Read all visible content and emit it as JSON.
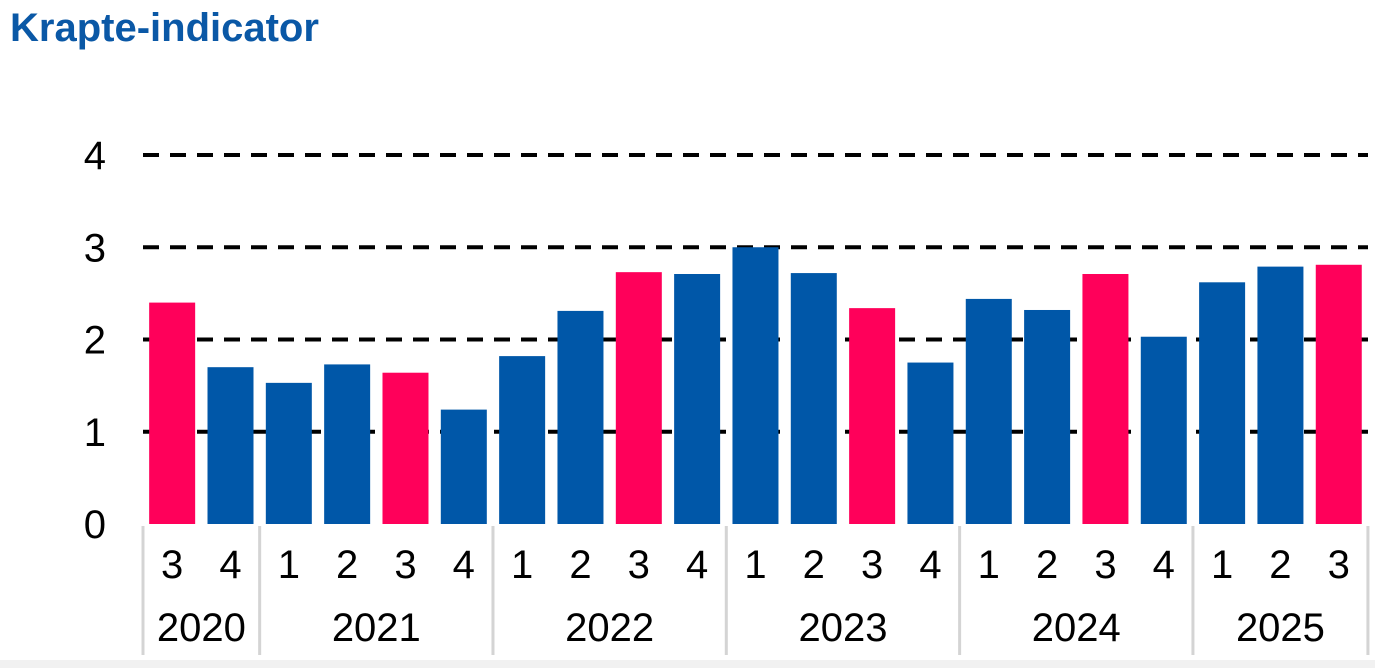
{
  "title": "Krapte-indicator",
  "colors": {
    "title": "#0a58a6",
    "bar_default": "#0057a8",
    "bar_highlight": "#ff005a",
    "gridline": "#000000",
    "axis_separator": "#d4d4d4",
    "text": "#000000"
  },
  "chart_data": {
    "type": "bar",
    "title": "Krapte-indicator",
    "xlabel": "",
    "ylabel": "",
    "ylim": [
      0,
      4
    ],
    "yticks": [
      "0",
      "1",
      "2",
      "3",
      "4"
    ],
    "grid": "dashed horizontal",
    "legend": "none",
    "categories": [
      "3",
      "4",
      "1",
      "2",
      "3",
      "4",
      "1",
      "2",
      "3",
      "4",
      "1",
      "2",
      "3",
      "4",
      "1",
      "2",
      "3",
      "4",
      "1",
      "2",
      "3"
    ],
    "values": [
      2.4,
      1.7,
      1.53,
      1.73,
      1.64,
      1.24,
      1.82,
      2.31,
      2.73,
      2.71,
      3.0,
      2.72,
      2.34,
      1.75,
      2.44,
      2.32,
      2.71,
      2.03,
      2.62,
      2.79,
      2.81
    ],
    "highlighted": [
      true,
      false,
      false,
      false,
      true,
      false,
      false,
      false,
      true,
      false,
      false,
      false,
      true,
      false,
      false,
      false,
      true,
      false,
      false,
      false,
      true
    ],
    "year_groups": [
      {
        "label": "2020",
        "count": 2
      },
      {
        "label": "2021",
        "count": 4
      },
      {
        "label": "2022",
        "count": 4
      },
      {
        "label": "2023",
        "count": 4
      },
      {
        "label": "2024",
        "count": 4
      },
      {
        "label": "2025",
        "count": 3
      }
    ]
  }
}
